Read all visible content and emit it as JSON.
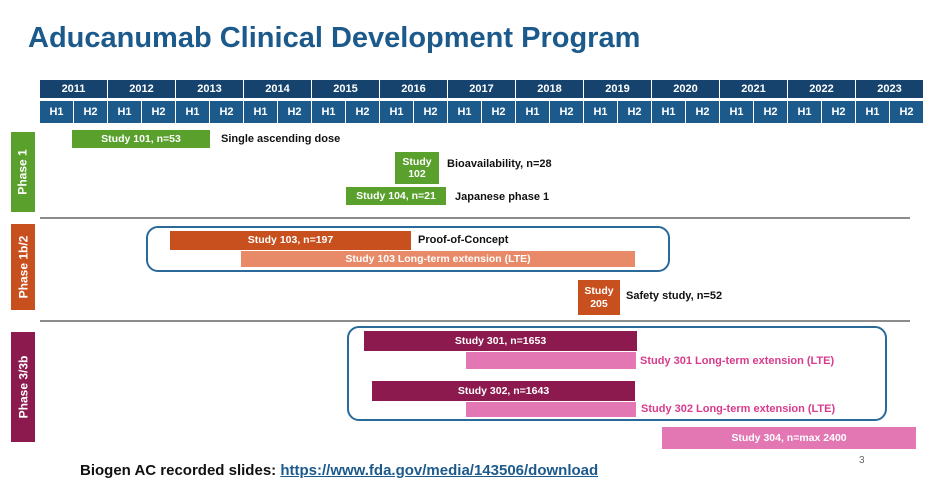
{
  "title": "Aducanumab Clinical Development Program",
  "timeline": {
    "years": [
      "2011",
      "2012",
      "2013",
      "2014",
      "2015",
      "2016",
      "2017",
      "2018",
      "2019",
      "2020",
      "2021",
      "2022",
      "2023"
    ],
    "half_labels": [
      "H1",
      "H2"
    ]
  },
  "phases": [
    {
      "label": "Phase 1",
      "color": "#5aa02c"
    },
    {
      "label": "Phase 1b/2",
      "color": "#c8501e"
    },
    {
      "label": "Phase 3/3b",
      "color": "#8c1a4e"
    }
  ],
  "bars": {
    "study101": "Study 101, n=53",
    "study102": "Study\n102",
    "study104": "Study 104, n=21",
    "study103": "Study 103, n=197",
    "study103_lte": "Study 103 Long-term extension (LTE)",
    "study205": "Study\n205",
    "study301": "Study 301, n=1653",
    "study302": "Study 302, n=1643",
    "study304": "Study 304, n=max 2400"
  },
  "labels": {
    "study101": "Single ascending dose",
    "study102": "Bioavailability, n=28",
    "study104": "Japanese phase 1",
    "study103": "Proof-of-Concept",
    "study205": "Safety study, n=52",
    "study301_lte": "Study 301 Long-term extension (LTE)",
    "study302_lte": "Study 302 Long-term extension (LTE)"
  },
  "colors": {
    "header_dark": "#16436e",
    "header_light": "#1c5a8c",
    "green": "#5aa02c",
    "orange_dark": "#c8501e",
    "orange_light": "#e88a68",
    "purple": "#8c1a4e",
    "pink": "#e377b3"
  },
  "footer": {
    "text": "Biogen AC recorded slides:",
    "link": "https://www.fda.gov/media/143506/download"
  },
  "page_number": "3"
}
